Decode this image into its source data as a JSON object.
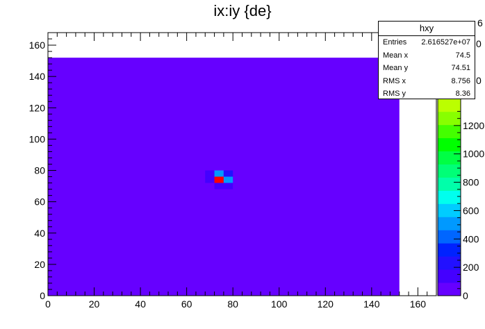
{
  "title": "ix:iy {de}",
  "stats": {
    "name": "hxy",
    "rows": [
      {
        "label": "Entries",
        "value": "2.616527e+07"
      },
      {
        "label": "Mean x",
        "value": "74.5"
      },
      {
        "label": "Mean y",
        "value": "74.51"
      },
      {
        "label": "RMS x",
        "value": "8.756"
      },
      {
        "label": "RMS y",
        "value": "8.36"
      }
    ]
  },
  "colors": {
    "palette": [
      "#6600ff",
      "#4400ff",
      "#2211ff",
      "#0022ff",
      "#0066ff",
      "#0099ff",
      "#00ccff",
      "#00ffee",
      "#00ffaa",
      "#00ff77",
      "#00ff44",
      "#00ff00",
      "#44ff00",
      "#88ff00",
      "#bbff00",
      "#eeff00"
    ],
    "background_cell": "#6600ff",
    "peak_cell": "#ff0000"
  },
  "chart_data": {
    "type": "heatmap",
    "title": "ix:iy {de}",
    "xlim": [
      0,
      168
    ],
    "ylim": [
      0,
      168
    ],
    "x_ticks": [
      0,
      20,
      40,
      60,
      80,
      100,
      120,
      140,
      160
    ],
    "y_ticks": [
      0,
      20,
      40,
      60,
      80,
      100,
      120,
      140,
      160
    ],
    "filled_region": {
      "x": [
        0,
        152
      ],
      "y": [
        0,
        152
      ]
    },
    "bin_width": 4,
    "background_color": "#6600ff",
    "cells": [
      {
        "x": [
          68,
          72
        ],
        "y": [
          72,
          76
        ],
        "color": "#4400ff"
      },
      {
        "x": [
          68,
          72
        ],
        "y": [
          76,
          80
        ],
        "color": "#4400ff"
      },
      {
        "x": [
          72,
          76
        ],
        "y": [
          76,
          80
        ],
        "color": "#0099ff"
      },
      {
        "x": [
          76,
          80
        ],
        "y": [
          76,
          80
        ],
        "color": "#2211ff"
      },
      {
        "x": [
          72,
          76
        ],
        "y": [
          72,
          76
        ],
        "color": "#ff0000"
      },
      {
        "x": [
          76,
          80
        ],
        "y": [
          72,
          76
        ],
        "color": "#0099ff"
      },
      {
        "x": [
          72,
          76
        ],
        "y": [
          68,
          72
        ],
        "color": "#4400ff"
      },
      {
        "x": [
          76,
          80
        ],
        "y": [
          68,
          72
        ],
        "color": "#4400ff"
      }
    ],
    "colorbar": {
      "ticks": [
        0,
        200,
        400,
        600,
        800,
        1000,
        1200
      ],
      "visible_labels": [
        "0",
        "200",
        "400",
        "600",
        "800",
        "1000",
        "1200"
      ],
      "multiplier_label": "6",
      "partial_labels": [
        "0",
        "0"
      ]
    },
    "grid": false
  }
}
